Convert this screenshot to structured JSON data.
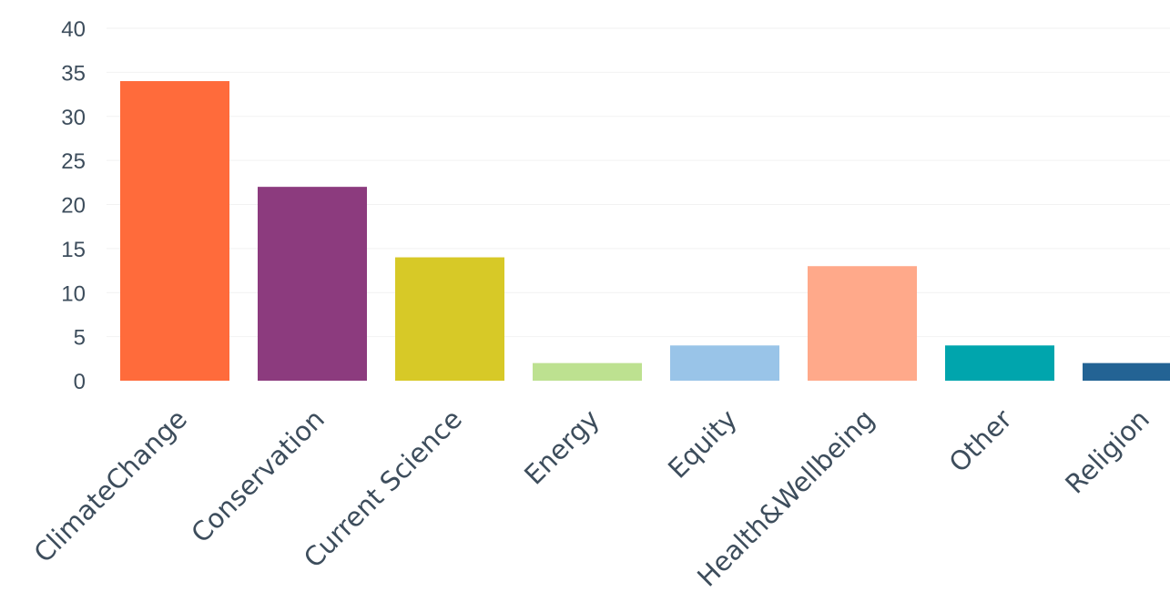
{
  "chart_data": {
    "type": "bar",
    "title": "",
    "xlabel": "",
    "ylabel": "",
    "ylim": [
      0,
      40
    ],
    "yticks": [
      0,
      5,
      10,
      15,
      20,
      25,
      30,
      35,
      40
    ],
    "grid": true,
    "legend": "none",
    "categories": [
      "ClimateChange",
      "Conservation",
      "Current Science",
      "Energy",
      "Equity",
      "Health&Wellbeing",
      "Other",
      "Religion"
    ],
    "values": [
      34,
      22,
      14,
      2,
      4,
      13,
      4,
      2
    ],
    "colors": [
      "#ff6b3b",
      "#8c3b7e",
      "#d7c927",
      "#bde190",
      "#99c4e8",
      "#ffa98a",
      "#00a5ad",
      "#236394"
    ]
  }
}
